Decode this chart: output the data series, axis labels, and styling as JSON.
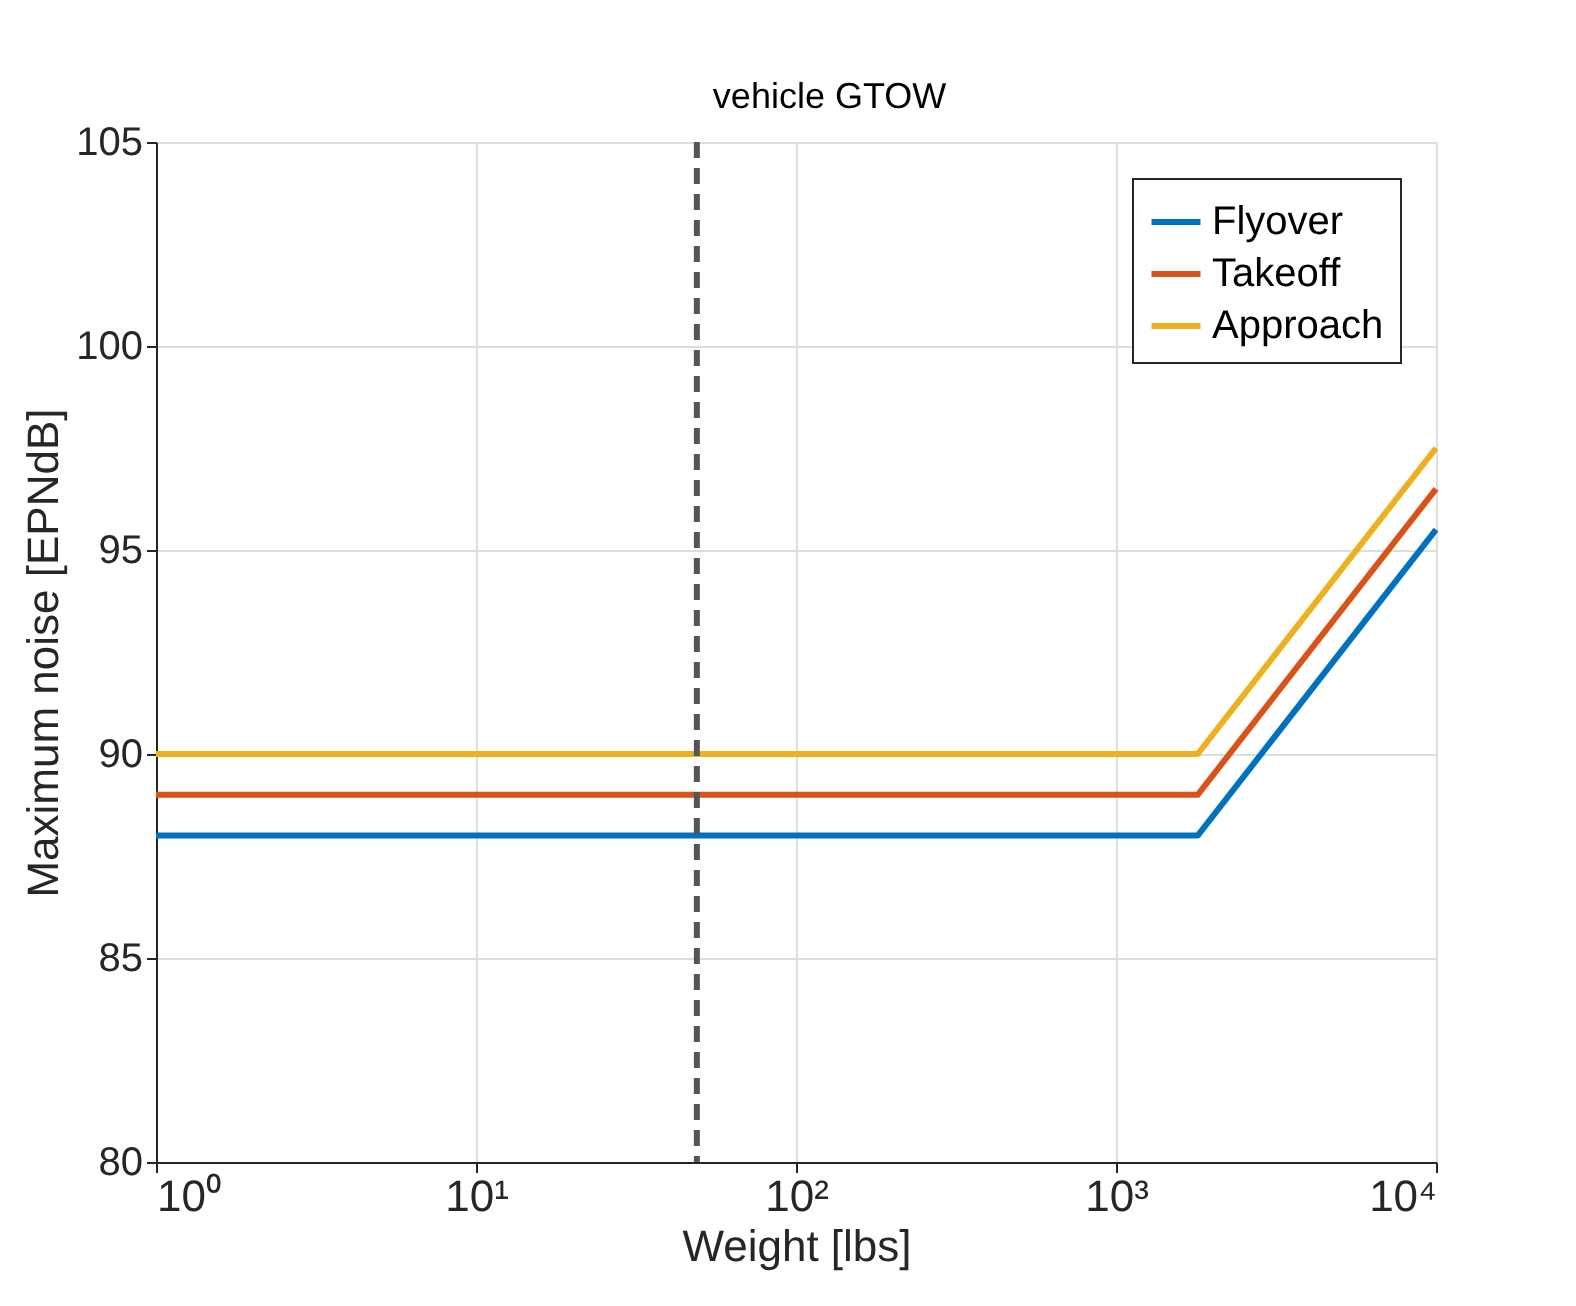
{
  "chart_data": {
    "type": "line",
    "xlabel": "Weight [lbs]",
    "ylabel": "Maximum noise [EPNdB]",
    "x": [
      1,
      1800,
      10000
    ],
    "series": [
      {
        "name": "Flyover",
        "color": "#0072bd",
        "values": [
          88,
          88,
          95.5
        ]
      },
      {
        "name": "Takeoff",
        "color": "#d95319",
        "values": [
          89,
          89,
          96.5
        ]
      },
      {
        "name": "Approach",
        "color": "#edb120",
        "values": [
          90,
          90,
          97.5
        ]
      }
    ],
    "log": "x",
    "xlim": [
      1,
      10000
    ],
    "xticks": [
      {
        "value": 1,
        "label": "10⁰"
      },
      {
        "value": 10,
        "label": "10¹"
      },
      {
        "value": 100,
        "label": "10²"
      },
      {
        "value": 1000,
        "label": "10³"
      },
      {
        "value": 10000,
        "label": "10⁴"
      }
    ],
    "ylim": [
      80,
      105
    ],
    "yticks": [
      80,
      85,
      90,
      95,
      100,
      105
    ],
    "ref_lines": [
      {
        "axis": "x",
        "value": 49,
        "label": "vehicle GTOW",
        "color": "#555555",
        "line_style": "dashed"
      }
    ],
    "grid": true,
    "legend": "top right",
    "marker": "none",
    "line_style": "solid"
  }
}
